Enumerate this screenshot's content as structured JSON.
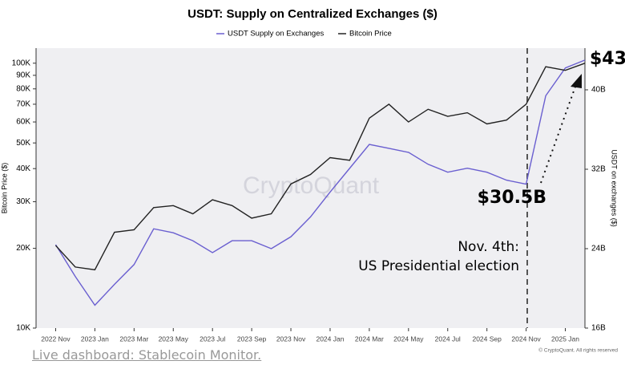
{
  "chart_data": {
    "type": "line",
    "title": "USDT: Supply on Centralized Exchanges ($)",
    "x": [
      "2022-11",
      "2022-12",
      "2023-01",
      "2023-02",
      "2023-03",
      "2023-04",
      "2023-05",
      "2023-06",
      "2023-07",
      "2023-08",
      "2023-09",
      "2023-10",
      "2023-11",
      "2023-12",
      "2024-01",
      "2024-02",
      "2024-03",
      "2024-04",
      "2024-05",
      "2024-06",
      "2024-07",
      "2024-08",
      "2024-09",
      "2024-10",
      "2024-11",
      "2024-12",
      "2025-01",
      "2025-02"
    ],
    "xlim": [
      "2022-10",
      "2025-02"
    ],
    "xticks": [
      {
        "value": "2022-11",
        "label": "2022 Nov"
      },
      {
        "value": "2023-01",
        "label": "2023 Jan"
      },
      {
        "value": "2023-03",
        "label": "2023 Mar"
      },
      {
        "value": "2023-05",
        "label": "2023 May"
      },
      {
        "value": "2023-07",
        "label": "2023 Jul"
      },
      {
        "value": "2023-09",
        "label": "2023 Sep"
      },
      {
        "value": "2023-11",
        "label": "2023 Nov"
      },
      {
        "value": "2024-01",
        "label": "2024 Jan"
      },
      {
        "value": "2024-03",
        "label": "2024 Mar"
      },
      {
        "value": "2024-05",
        "label": "2024 May"
      },
      {
        "value": "2024-07",
        "label": "2024 Jul"
      },
      {
        "value": "2024-09",
        "label": "2024 Sep"
      },
      {
        "value": "2024-11",
        "label": "2024 Nov"
      },
      {
        "value": "2025-01",
        "label": "2025 Jan"
      }
    ],
    "series": [
      {
        "name": "USDT Supply on Exchanges",
        "color": "#6a5fd0",
        "axis": "y2",
        "values": [
          24.4,
          21.2,
          18.3,
          20.4,
          22.4,
          26.0,
          25.6,
          24.8,
          23.6,
          24.8,
          24.8,
          24.0,
          25.2,
          27.2,
          29.7,
          32.1,
          34.5,
          34.1,
          33.7,
          32.5,
          31.7,
          32.1,
          31.7,
          30.9,
          30.5,
          39.4,
          42.2,
          43.0
        ]
      },
      {
        "name": "Bitcoin Price",
        "color": "#222222",
        "values": [
          20500,
          17000,
          16600,
          23000,
          23500,
          28500,
          29000,
          27000,
          30500,
          29000,
          26000,
          27000,
          35000,
          38000,
          44000,
          43000,
          62000,
          70000,
          60000,
          67000,
          63000,
          65000,
          59000,
          61000,
          70000,
          97000,
          94000,
          100000
        ]
      }
    ],
    "ylabel": "Bitcoin Price ($)",
    "y2label": "USDT on exchanges ($)",
    "ylog": true,
    "ylim": [
      10000,
      114000
    ],
    "yticks": [
      {
        "value": 10000,
        "label": "10K"
      },
      {
        "value": 20000,
        "label": "20K"
      },
      {
        "value": 30000,
        "label": "30K"
      },
      {
        "value": 40000,
        "label": "40K"
      },
      {
        "value": 50000,
        "label": "50K"
      },
      {
        "value": 60000,
        "label": "60K"
      },
      {
        "value": 70000,
        "label": "70K"
      },
      {
        "value": 80000,
        "label": "80K"
      },
      {
        "value": 90000,
        "label": "90K"
      },
      {
        "value": 100000,
        "label": "100K"
      }
    ],
    "y2lim": [
      16,
      44.2
    ],
    "y2ticks": [
      {
        "value": 16,
        "label": "16B"
      },
      {
        "value": 24,
        "label": "24B"
      },
      {
        "value": 32,
        "label": "32B"
      },
      {
        "value": 40,
        "label": "40B"
      }
    ],
    "annotations": [
      "$43",
      "$30.5B",
      "Nov. 4th:",
      "US Presidential election"
    ],
    "watermark": "CryptoQuant",
    "copyright": "© CryptoQuant. All rights reserved"
  },
  "footer_link": "Live dashboard: Stablecoin Monitor."
}
